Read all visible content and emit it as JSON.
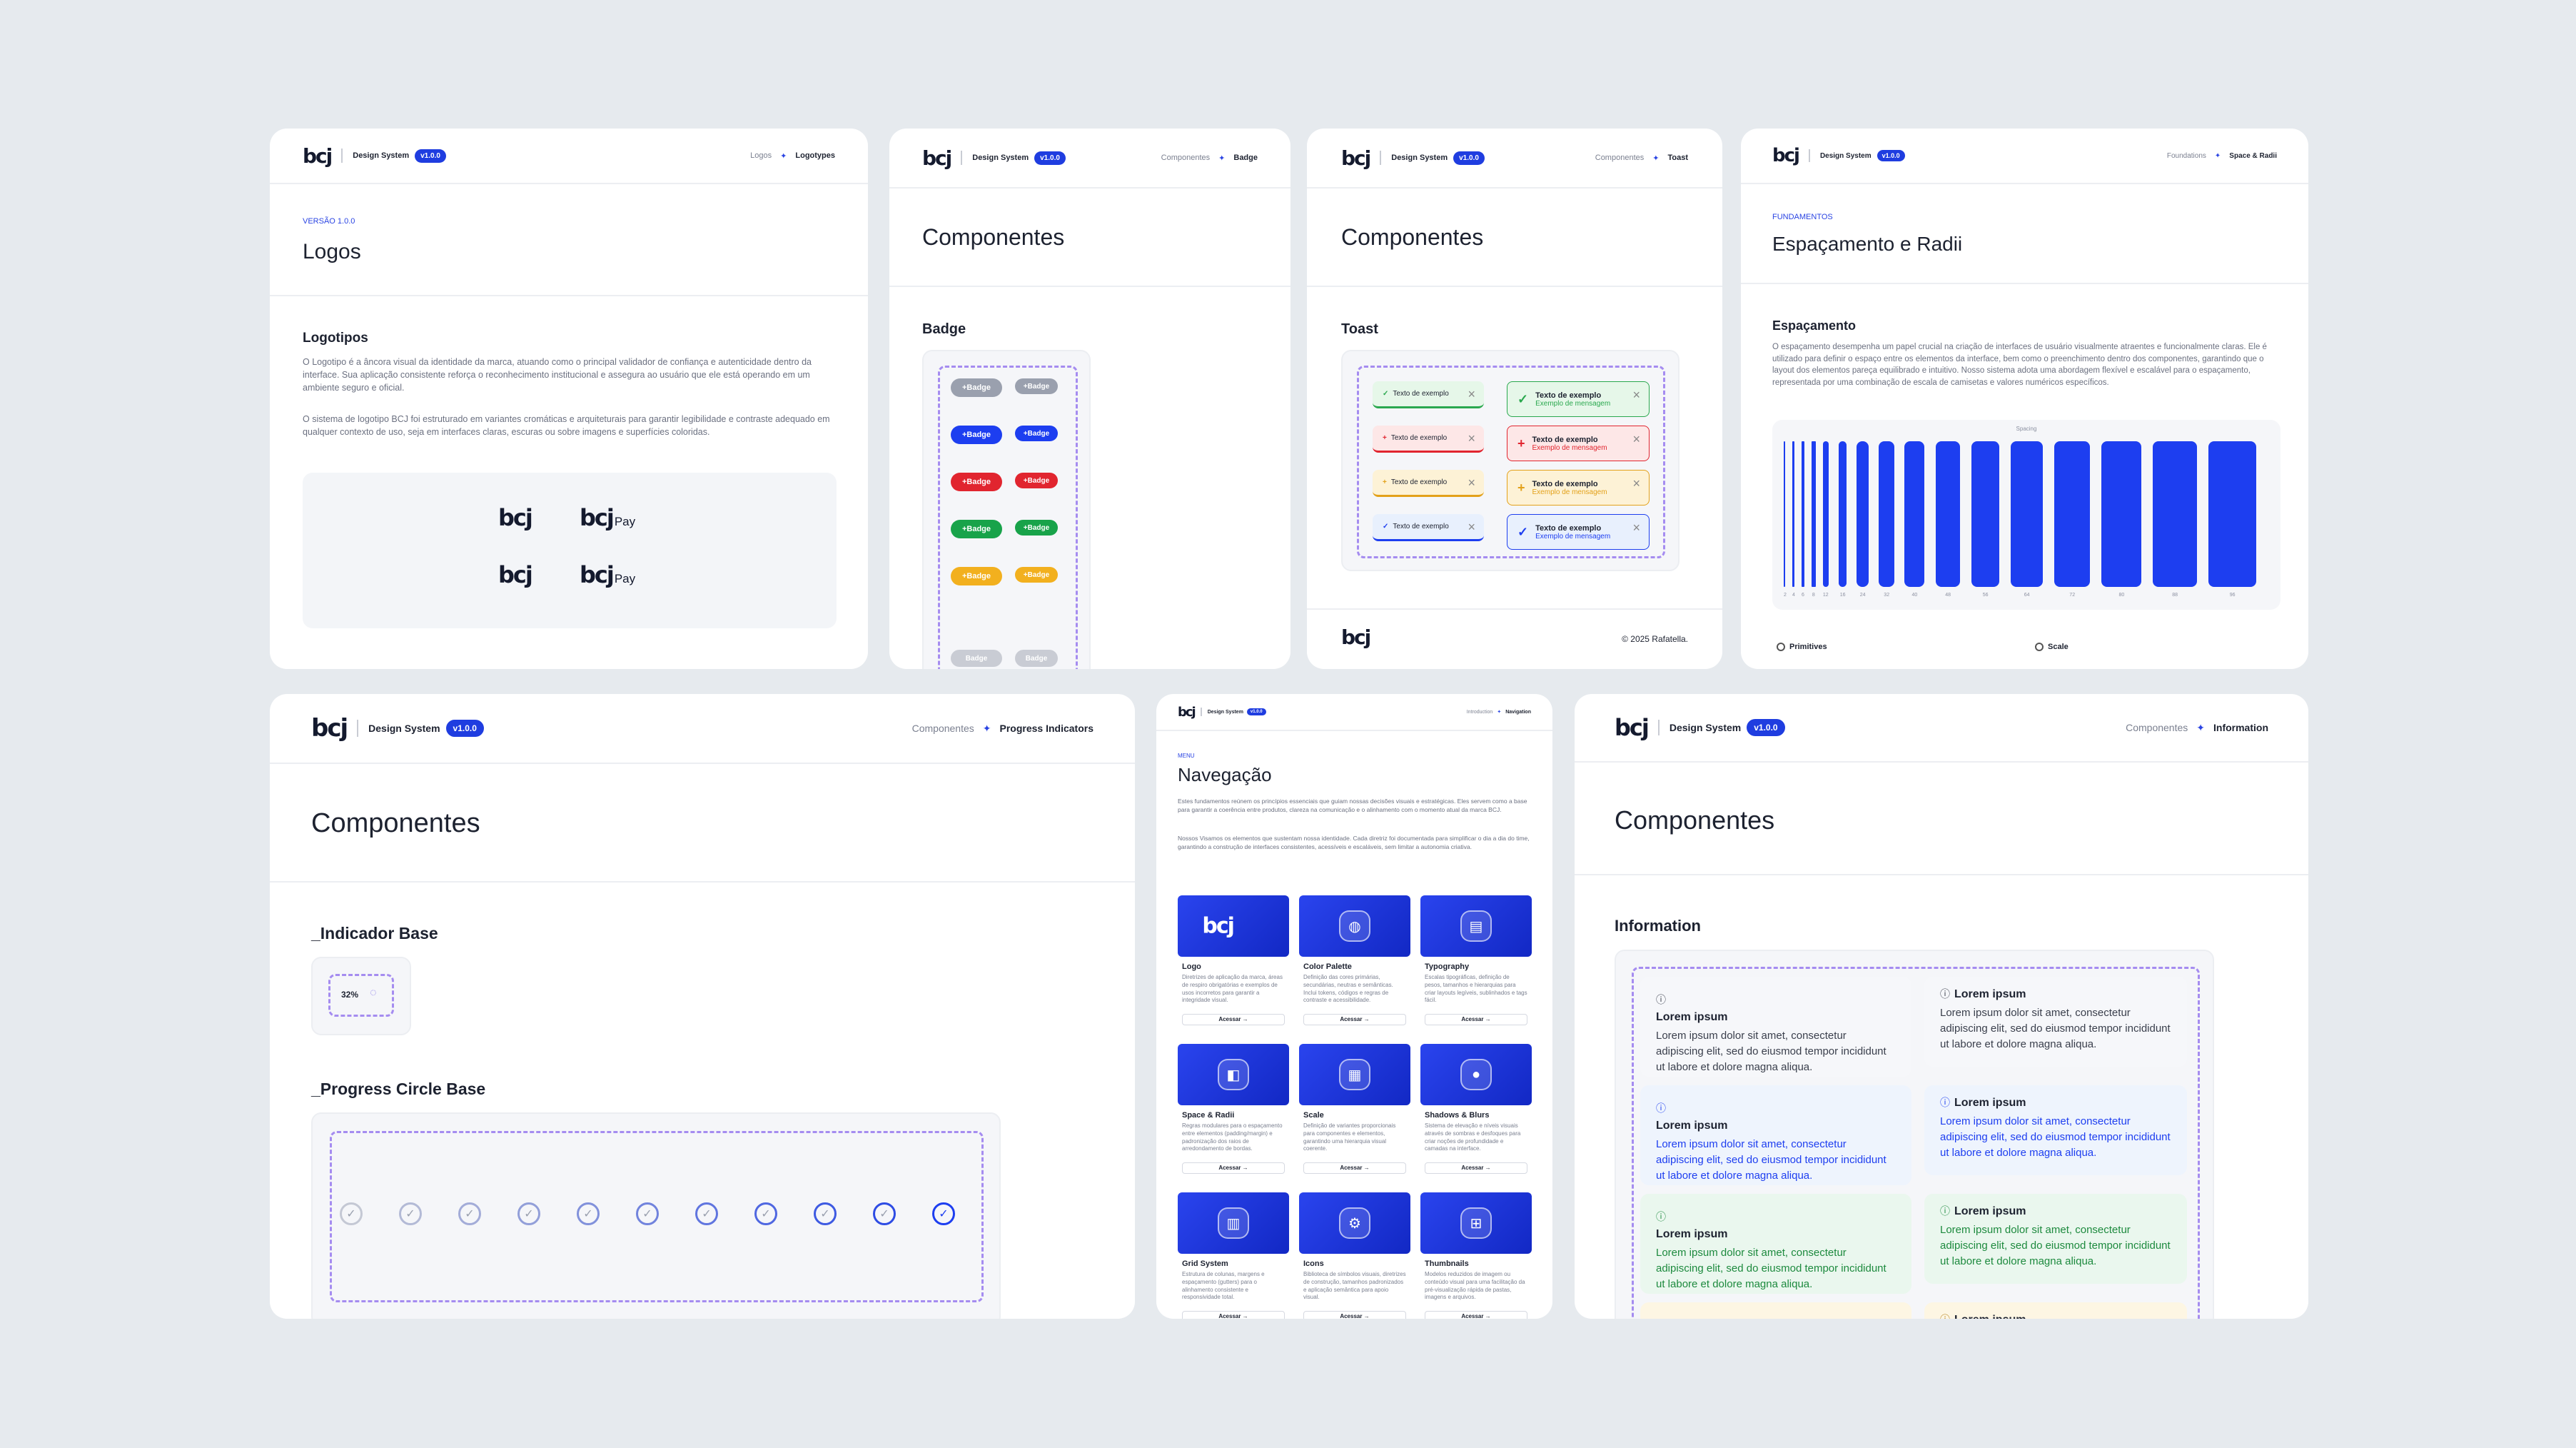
{
  "header": {
    "logo": "bcj",
    "design_system": "Design System",
    "version": "v1.0.0"
  },
  "logos_card": {
    "crumb_parent": "Logos",
    "crumb_current": "Logotypes",
    "eyebrow": "VERSÃO 1.0.0",
    "title": "Logos",
    "section": "Logotipos",
    "para1": "O Logotipo é a âncora visual da identidade da marca, atuando como o principal validador de confiança e autenticidade dentro da interface. Sua aplicação consistente reforça o reconhecimento institucional e assegura ao usuário que ele está operando em um ambiente seguro e oficial.",
    "para2": "O sistema de logotipo BCJ foi estruturado em variantes cromáticas e arquiteturais para garantir legibilidade e contraste adequado em qualquer contexto de uso, seja em interfaces claras, escuras ou sobre imagens e superfícies coloridas.",
    "mark": "bcj",
    "pay": "Pay"
  },
  "badge_card": {
    "crumb_parent": "Componentes",
    "crumb_current": "Badge",
    "title": "Componentes",
    "section": "Badge",
    "badge_label": "Badge",
    "colors": [
      "#9aa0ae",
      "#1d3ef0",
      "#e1252f",
      "#18a34a",
      "#f2b01e"
    ]
  },
  "toast_card": {
    "crumb_parent": "Componentes",
    "crumb_current": "Toast",
    "title": "Componentes",
    "section": "Toast",
    "toast_title": "Texto de exemplo",
    "toast_message": "Exemplo de mensagem",
    "footer_copy": "© 2025 Rafatella.",
    "kinds": [
      {
        "bg": "#e6f7e9",
        "line": "#2aa84e",
        "icon": "✓"
      },
      {
        "bg": "#fde7e7",
        "line": "#e1252f",
        "icon": "+"
      },
      {
        "bg": "#fdf2d6",
        "line": "#e3a11a",
        "icon": "+"
      },
      {
        "bg": "#e8f0fd",
        "line": "#1d3ef0",
        "icon": "✓"
      }
    ]
  },
  "space_card": {
    "crumb_parent": "Foundations",
    "crumb_current": "Space & Radii",
    "eyebrow": "FUNDAMENTOS",
    "title": "Espaçamento e Radii",
    "section": "Espaçamento",
    "para": "O espaçamento desempenha um papel crucial na criação de interfaces de usuário visualmente atraentes e funcionalmente claras. Ele é utilizado para definir o espaço entre os elementos da interface, bem como o preenchimento dentro dos componentes, garantindo que o layout dos elementos pareça equilibrado e intuitivo. Nosso sistema adota uma abordagem flexível e escalável para o espaçamento, representada por uma combinação de escala de camisetas e valores numéricos específicos.",
    "chart_label": "Spacing",
    "scale": [
      2,
      4,
      6,
      8,
      12,
      16,
      24,
      32,
      40,
      48,
      56,
      64,
      72,
      80,
      88,
      96
    ],
    "legend": [
      "Primitives",
      "Scale"
    ]
  },
  "progress_card": {
    "crumb_parent": "Componentes",
    "crumb_current": "Progress Indicators",
    "title": "Componentes",
    "section1": "_Indicador Base",
    "indicator_value": "32%",
    "section2": "_Progress Circle Base",
    "circle_count": 11
  },
  "nav_card": {
    "crumb_parent": "Introduction",
    "crumb_current": "Navigation",
    "eyebrow": "MENU",
    "title": "Navegação",
    "para1": "Estes fundamentos reúnem os princípios essenciais que guiam nossas decisões visuais e estratégicas. Eles servem como a base para garantir a coerência entre produtos, clareza na comunicação e o alinhamento com o momento atual da marca BCJ.",
    "para2": "Nossos Visamos os elementos que sustentam nossa identidade. Cada diretriz foi documentada para simplificar o dia a dia do time, garantindo a construção de interfaces consistentes, acessíveis e escaláveis, sem limitar a autonomia criativa.",
    "access": "Acessar →",
    "tiles": [
      {
        "name": "Logo",
        "glyph": "bcj",
        "desc": "Diretrizes de aplicação da marca, áreas de respiro obrigatórias e exemplos de usos incorretos para garantir a integridade visual."
      },
      {
        "name": "Color Palette",
        "glyph": "◍",
        "desc": "Definição das cores primárias, secundárias, neutras e semânticas. Inclui tokens, códigos e regras de contraste e acessibilidade."
      },
      {
        "name": "Typography",
        "glyph": "▤",
        "desc": "Escalas tipográficas, definição de pesos, tamanhos e hierarquias para criar layouts legíveis, sublinhados e tags fácil."
      },
      {
        "name": "Space & Radii",
        "glyph": "◧",
        "desc": "Regras modulares para o espaçamento entre elementos (padding/margin) e padronização dos raios de arredondamento de bordas."
      },
      {
        "name": "Scale",
        "glyph": "▦",
        "desc": "Definição de variantes proporcionais para componentes e elementos, garantindo uma hierarquia visual coerente."
      },
      {
        "name": "Shadows & Blurs",
        "glyph": "●",
        "desc": "Sistema de elevação e níveis visuais através de sombras e desfoques para criar noções de profundidade e camadas na interface."
      },
      {
        "name": "Grid System",
        "glyph": "▥",
        "desc": "Estrutura de colunas, margens e espaçamento (gutters) para o alinhamento consistente e responsividade total."
      },
      {
        "name": "Icons",
        "glyph": "⚙",
        "desc": "Biblioteca de símbolos visuais, diretrizes de construção, tamanhos padronizados e aplicação semântica para apoio visual."
      },
      {
        "name": "Thumbnails",
        "glyph": "⊞",
        "desc": "Modelos reduzidos de imagem ou conteúdo visual para uma facilitação da pré-visualização rápida de pastas, imagens e arquivos."
      }
    ]
  },
  "info_card": {
    "crumb_parent": "Componentes",
    "crumb_current": "Information",
    "title": "Componentes",
    "section": "Information",
    "item_title": "Lorem ipsum",
    "item_body": "Lorem ipsum dolor sit amet, consectetur adipiscing elit, sed do eiusmod tempor incididunt ut labore et dolore magna aliqua.",
    "variants": [
      {
        "bg": "#f6f7fa",
        "text": "#3a3f4c"
      },
      {
        "bg": "#eef4fd",
        "text": "#1d3ef0"
      },
      {
        "bg": "#eaf7ee",
        "text": "#1d8a3e"
      },
      {
        "bg": "#fdf6e3",
        "text": "#b07a10"
      }
    ]
  }
}
